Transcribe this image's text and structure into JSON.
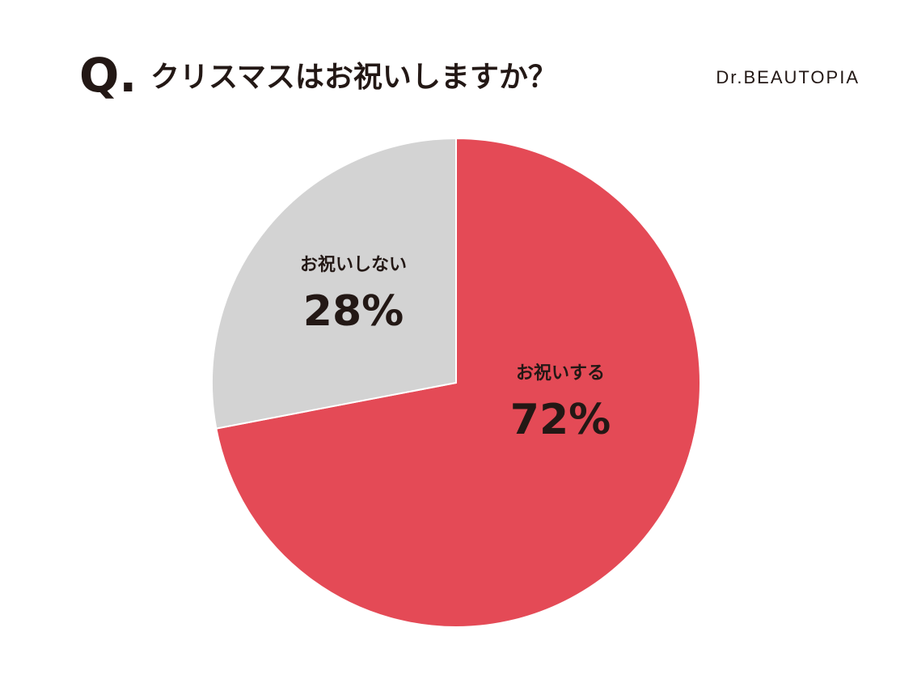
{
  "chart_data": {
    "type": "pie",
    "title_prefix": "Q.",
    "title": "クリスマスはお祝いしますか？",
    "source": "Dr.BEAUTOPIA",
    "categories": [
      "お祝いする",
      "お祝いしない"
    ],
    "values": [
      72,
      28
    ],
    "value_labels": [
      "72%",
      "28%"
    ],
    "colors": [
      "#e44a56",
      "#d3d3d3"
    ]
  }
}
